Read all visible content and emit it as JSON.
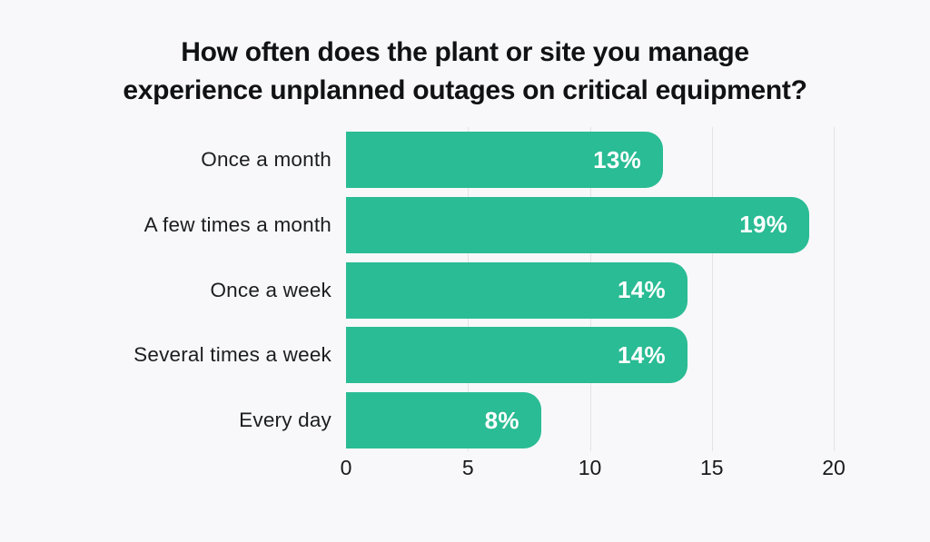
{
  "page": {
    "background_color": "#f8f8fa"
  },
  "title_lines": [
    "How often does the plant or site you manage",
    "experience unplanned outages on critical equipment?"
  ],
  "chart_data": {
    "type": "bar",
    "orientation": "horizontal",
    "title": "How often does the plant or site you manage experience unplanned outages on critical equipment?",
    "categories": [
      "Once a month",
      "A few times a month",
      "Once a week",
      "Several times a week",
      "Every day"
    ],
    "values": [
      13,
      19,
      14,
      14,
      8
    ],
    "value_labels": [
      "13%",
      "19%",
      "14%",
      "14%",
      "8%"
    ],
    "x_ticks": [
      0,
      5,
      10,
      15,
      20
    ],
    "xlim": [
      0,
      20
    ],
    "grid": "vertical-lines-at-ticks",
    "legend": "none",
    "bar_color": "#2abc94",
    "value_label_color": "#ffffff",
    "gridline_color": "#e3e3e5",
    "axis_label_color": "#17191a",
    "category_label_color": "#1c1e1e"
  }
}
